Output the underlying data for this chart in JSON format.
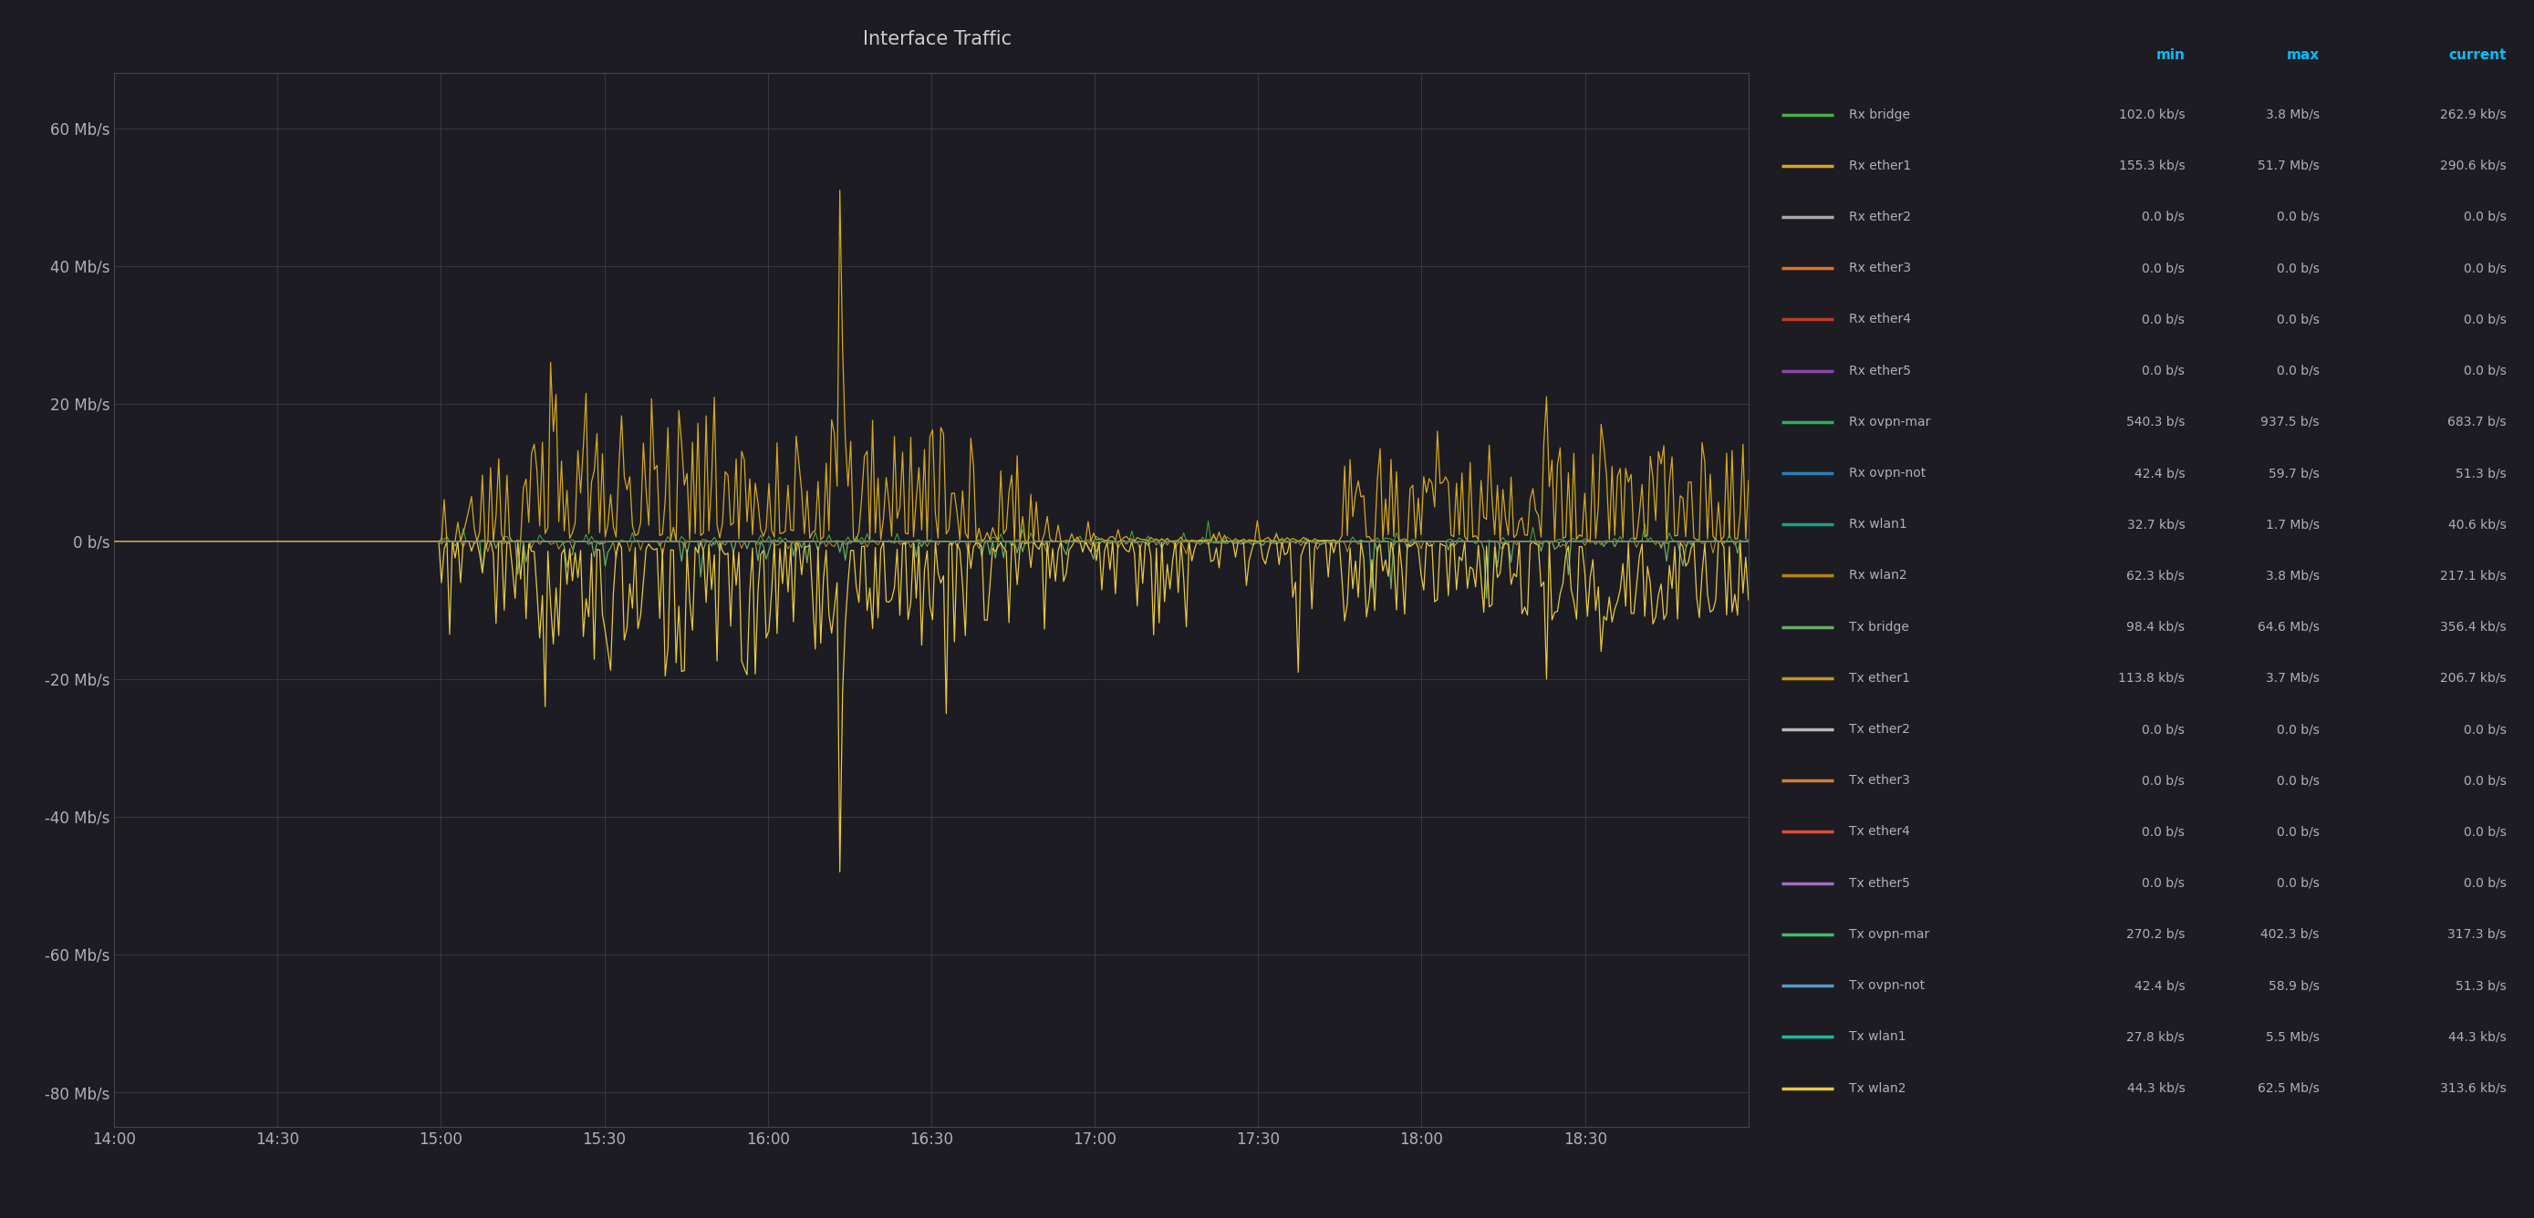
{
  "title": "Interface Traffic",
  "background_color": "#1c1c22",
  "plot_bg_color": "#1c1c22",
  "grid_color": "#383840",
  "text_color": "#b0b0b8",
  "title_color": "#cccccc",
  "ylim": [
    -85,
    68
  ],
  "yticks": [
    -80,
    -60,
    -40,
    -20,
    0,
    20,
    40,
    60
  ],
  "ytick_labels": [
    "-80 Mb/s",
    "-60 Mb/s",
    "-40 Mb/s",
    "-20 Mb/s",
    "0 b/s",
    "20 Mb/s",
    "40 Mb/s",
    "60 Mb/s"
  ],
  "x_start_min": 0,
  "x_end_min": 300,
  "xtick_positions": [
    0,
    30,
    60,
    90,
    120,
    150,
    180,
    210,
    240,
    270
  ],
  "xtick_labels": [
    "14:00",
    "14:30",
    "15:00",
    "15:30",
    "16:00",
    "16:30",
    "17:00",
    "17:30",
    "18:00",
    "18:30"
  ],
  "legend_entries": [
    {
      "label": "Rx bridge",
      "color": "#4daf4a",
      "min": "102.0 kb/s",
      "max": "3.8 Mb/s",
      "current": "262.9 kb/s"
    },
    {
      "label": "Rx ether1",
      "color": "#d4a820",
      "min": "155.3 kb/s",
      "max": "51.7 Mb/s",
      "current": "290.6 kb/s"
    },
    {
      "label": "Rx ether2",
      "color": "#aaaaaa",
      "min": "0.0 b/s",
      "max": "0.0 b/s",
      "current": "0.0 b/s"
    },
    {
      "label": "Rx ether3",
      "color": "#e07020",
      "min": "0.0 b/s",
      "max": "0.0 b/s",
      "current": "0.0 b/s"
    },
    {
      "label": "Rx ether4",
      "color": "#c0392b",
      "min": "0.0 b/s",
      "max": "0.0 b/s",
      "current": "0.0 b/s"
    },
    {
      "label": "Rx ether5",
      "color": "#8e44ad",
      "min": "0.0 b/s",
      "max": "0.0 b/s",
      "current": "0.0 b/s"
    },
    {
      "label": "Rx ovpn-mar",
      "color": "#27ae60",
      "min": "540.3 b/s",
      "max": "937.5 b/s",
      "current": "683.7 b/s"
    },
    {
      "label": "Rx ovpn-not",
      "color": "#2980b9",
      "min": "42.4 b/s",
      "max": "59.7 b/s",
      "current": "51.3 b/s"
    },
    {
      "label": "Rx wlan1",
      "color": "#16a085",
      "min": "32.7 kb/s",
      "max": "1.7 Mb/s",
      "current": "40.6 kb/s"
    },
    {
      "label": "Rx wlan2",
      "color": "#b8860b",
      "min": "62.3 kb/s",
      "max": "3.8 Mb/s",
      "current": "217.1 kb/s"
    },
    {
      "label": "Tx bridge",
      "color": "#6aab6a",
      "min": "98.4 kb/s",
      "max": "64.6 Mb/s",
      "current": "356.4 kb/s"
    },
    {
      "label": "Tx ether1",
      "color": "#c8961c",
      "min": "113.8 kb/s",
      "max": "3.7 Mb/s",
      "current": "206.7 kb/s"
    },
    {
      "label": "Tx ether2",
      "color": "#bbbbbb",
      "min": "0.0 b/s",
      "max": "0.0 b/s",
      "current": "0.0 b/s"
    },
    {
      "label": "Tx ether3",
      "color": "#d08030",
      "min": "0.0 b/s",
      "max": "0.0 b/s",
      "current": "0.0 b/s"
    },
    {
      "label": "Tx ether4",
      "color": "#e05040",
      "min": "0.0 b/s",
      "max": "0.0 b/s",
      "current": "0.0 b/s"
    },
    {
      "label": "Tx ether5",
      "color": "#a070c0",
      "min": "0.0 b/s",
      "max": "0.0 b/s",
      "current": "0.0 b/s"
    },
    {
      "label": "Tx ovpn-mar",
      "color": "#3dbf70",
      "min": "270.2 b/s",
      "max": "402.3 b/s",
      "current": "317.3 b/s"
    },
    {
      "label": "Tx ovpn-not",
      "color": "#5599cc",
      "min": "42.4 b/s",
      "max": "58.9 b/s",
      "current": "51.3 b/s"
    },
    {
      "label": "Tx wlan1",
      "color": "#1abc9c",
      "min": "27.8 kb/s",
      "max": "5.5 Mb/s",
      "current": "44.3 kb/s"
    },
    {
      "label": "Tx wlan2",
      "color": "#e8c840",
      "min": "44.3 kb/s",
      "max": "62.5 Mb/s",
      "current": "313.6 kb/s"
    }
  ],
  "header_color": "#00bfff"
}
